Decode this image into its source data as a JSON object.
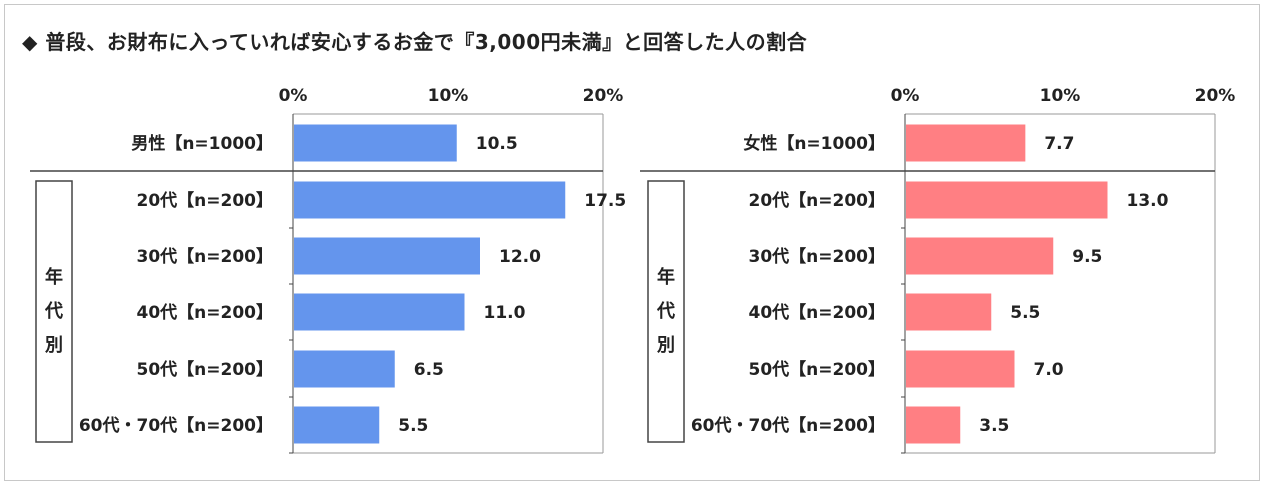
{
  "title": "◆ 普段、お財布に入っていれば安心するお金で『3,000円未満』と回答した人の割合",
  "group_label": [
    "年",
    "代",
    "別"
  ],
  "colors": {
    "male": "#6495ED",
    "female": "#FF7F83"
  },
  "chart_data": [
    {
      "type": "bar",
      "orientation": "horizontal",
      "categories": [
        "男性【n=1000】",
        "20代【n=200】",
        "30代【n=200】",
        "40代【n=200】",
        "50代【n=200】",
        "60代・70代【n=200】"
      ],
      "values": [
        10.5,
        17.5,
        12.0,
        11.0,
        6.5,
        5.5
      ],
      "value_labels": [
        "10.5",
        "17.5",
        "12.0",
        "11.0",
        "6.5",
        "5.5"
      ],
      "ticks": [
        "0%",
        "10%",
        "20%"
      ],
      "xlim": [
        0,
        20
      ],
      "color": "#6495ED"
    },
    {
      "type": "bar",
      "orientation": "horizontal",
      "categories": [
        "女性【n=1000】",
        "20代【n=200】",
        "30代【n=200】",
        "40代【n=200】",
        "50代【n=200】",
        "60代・70代【n=200】"
      ],
      "values": [
        7.7,
        13.0,
        9.5,
        5.5,
        7.0,
        3.5
      ],
      "value_labels": [
        "7.7",
        "13.0",
        "9.5",
        "5.5",
        "7.0",
        "3.5"
      ],
      "ticks": [
        "0%",
        "10%",
        "20%"
      ],
      "xlim": [
        0,
        20
      ],
      "color": "#FF7F83"
    }
  ]
}
